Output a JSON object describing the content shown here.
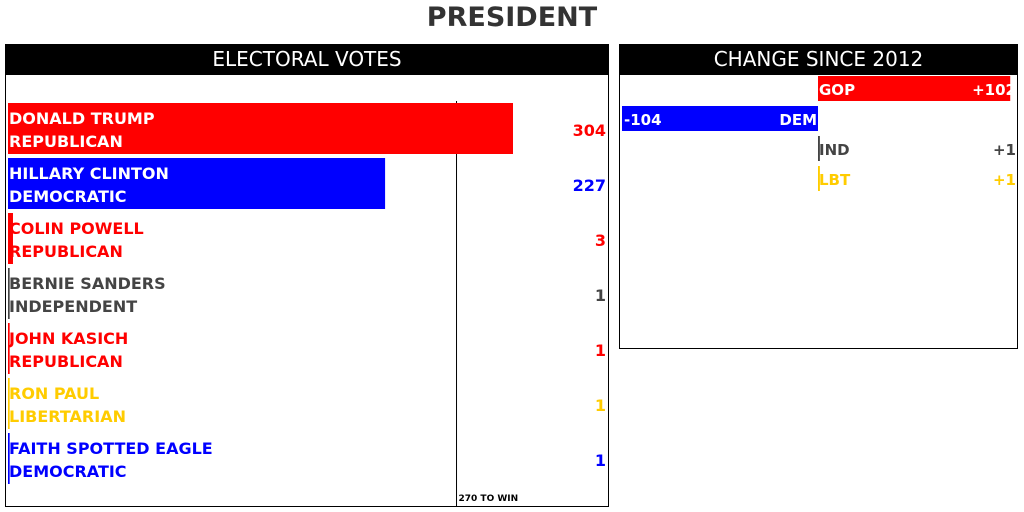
{
  "page": {
    "title": "PRESIDENT"
  },
  "panels": {
    "electoral": {
      "title": "ELECTORAL VOTES"
    },
    "change": {
      "title": "CHANGE SINCE 2012"
    }
  },
  "colors": {
    "republican": "#ff0000",
    "democratic": "#0000ff",
    "independent": "#444444",
    "libertarian": "#ffcc00",
    "header_bg": "#000000",
    "title_text": "#333333"
  },
  "chart_data": [
    {
      "type": "bar",
      "orientation": "horizontal",
      "title": "ELECTORAL VOTES",
      "categories": [
        "DONALD TRUMP",
        "HILLARY CLINTON",
        "COLIN POWELL",
        "BERNIE SANDERS",
        "JOHN KASICH",
        "RON PAUL",
        "FAITH SPOTTED EAGLE"
      ],
      "parties": [
        "REPUBLICAN",
        "DEMOCRATIC",
        "REPUBLICAN",
        "INDEPENDENT",
        "REPUBLICAN",
        "LIBERTARIAN",
        "DEMOCRATIC"
      ],
      "party_colors": [
        "#ff0000",
        "#0000ff",
        "#ff0000",
        "#444444",
        "#ff0000",
        "#ffcc00",
        "#0000ff"
      ],
      "values": [
        304,
        227,
        3,
        1,
        1,
        1,
        1
      ],
      "xlim": [
        0,
        538
      ],
      "reference_line": {
        "value": 270,
        "label": "270 TO WIN"
      },
      "grid": false,
      "legend": "none"
    },
    {
      "type": "bar",
      "orientation": "horizontal",
      "diverging": true,
      "title": "CHANGE SINCE 2012",
      "categories": [
        "GOP",
        "DEM",
        "IND",
        "LBT"
      ],
      "colors": [
        "#ff0000",
        "#0000ff",
        "#444444",
        "#ffcc00"
      ],
      "values": [
        102,
        -104,
        1,
        1
      ],
      "value_labels": [
        "+102",
        "-104",
        "+1",
        "+1"
      ],
      "xlim": [
        -104,
        102
      ],
      "grid": false,
      "legend": "none"
    }
  ]
}
